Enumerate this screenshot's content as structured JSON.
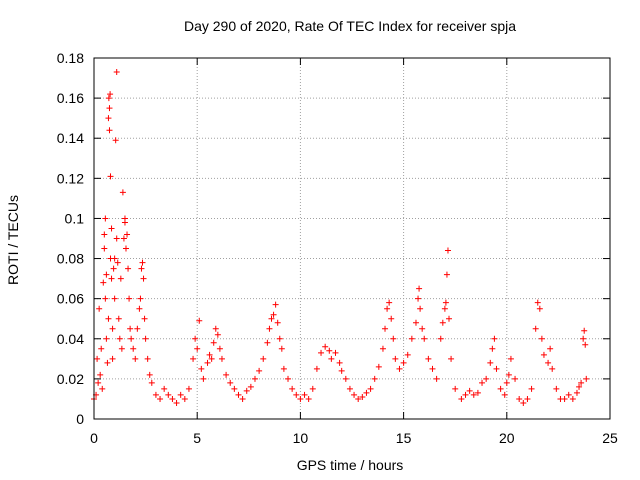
{
  "chart_data": {
    "type": "scatter",
    "title": "Day 290 of 2020, Rate Of TEC Index for receiver spja",
    "xlabel": "GPS time / hours",
    "ylabel": "ROTI / TECUs",
    "xlim": [
      0,
      25
    ],
    "ylim": [
      0,
      0.18
    ],
    "xticks": [
      {
        "value": 0,
        "label": "0"
      },
      {
        "value": 5,
        "label": "5"
      },
      {
        "value": 10,
        "label": "10"
      },
      {
        "value": 15,
        "label": "15"
      },
      {
        "value": 20,
        "label": "20"
      },
      {
        "value": 25,
        "label": "25"
      }
    ],
    "yticks": [
      {
        "value": 0,
        "label": "0"
      },
      {
        "value": 0.02,
        "label": "0.02"
      },
      {
        "value": 0.04,
        "label": "0.04"
      },
      {
        "value": 0.06,
        "label": "0.06"
      },
      {
        "value": 0.08,
        "label": "0.08"
      },
      {
        "value": 0.1,
        "label": "0.1"
      },
      {
        "value": 0.12,
        "label": "0.12"
      },
      {
        "value": 0.14,
        "label": "0.14"
      },
      {
        "value": 0.16,
        "label": "0.16"
      },
      {
        "value": 0.18,
        "label": "0.18"
      }
    ],
    "grid": true,
    "marker": "+",
    "color": "#ff0000",
    "series": [
      {
        "name": "ROTI",
        "points": [
          [
            0.0,
            0.01
          ],
          [
            0.1,
            0.012
          ],
          [
            0.15,
            0.03
          ],
          [
            0.2,
            0.018
          ],
          [
            0.25,
            0.055
          ],
          [
            0.3,
            0.022
          ],
          [
            0.35,
            0.035
          ],
          [
            0.4,
            0.015
          ],
          [
            0.45,
            0.068
          ],
          [
            0.5,
            0.092
          ],
          [
            0.5,
            0.085
          ],
          [
            0.55,
            0.1
          ],
          [
            0.55,
            0.06
          ],
          [
            0.6,
            0.072
          ],
          [
            0.6,
            0.04
          ],
          [
            0.65,
            0.028
          ],
          [
            0.7,
            0.05
          ],
          [
            0.7,
            0.15
          ],
          [
            0.72,
            0.16
          ],
          [
            0.75,
            0.155
          ],
          [
            0.75,
            0.144
          ],
          [
            0.78,
            0.162
          ],
          [
            0.8,
            0.121
          ],
          [
            0.8,
            0.08
          ],
          [
            0.85,
            0.095
          ],
          [
            0.85,
            0.07
          ],
          [
            0.9,
            0.045
          ],
          [
            0.9,
            0.03
          ],
          [
            0.95,
            0.075
          ],
          [
            1.0,
            0.08
          ],
          [
            1.0,
            0.06
          ],
          [
            1.05,
            0.139
          ],
          [
            1.1,
            0.173
          ],
          [
            1.1,
            0.09
          ],
          [
            1.15,
            0.078
          ],
          [
            1.2,
            0.05
          ],
          [
            1.25,
            0.04
          ],
          [
            1.3,
            0.07
          ],
          [
            1.35,
            0.035
          ],
          [
            1.4,
            0.113
          ],
          [
            1.45,
            0.09
          ],
          [
            1.5,
            0.1
          ],
          [
            1.5,
            0.098
          ],
          [
            1.55,
            0.085
          ],
          [
            1.6,
            0.092
          ],
          [
            1.65,
            0.075
          ],
          [
            1.7,
            0.06
          ],
          [
            1.75,
            0.045
          ],
          [
            1.8,
            0.04
          ],
          [
            1.9,
            0.035
          ],
          [
            2.0,
            0.03
          ],
          [
            2.1,
            0.045
          ],
          [
            2.2,
            0.055
          ],
          [
            2.25,
            0.06
          ],
          [
            2.3,
            0.075
          ],
          [
            2.35,
            0.078
          ],
          [
            2.4,
            0.07
          ],
          [
            2.45,
            0.05
          ],
          [
            2.5,
            0.04
          ],
          [
            2.6,
            0.03
          ],
          [
            2.7,
            0.022
          ],
          [
            2.8,
            0.018
          ],
          [
            3.0,
            0.012
          ],
          [
            3.2,
            0.01
          ],
          [
            3.4,
            0.015
          ],
          [
            3.6,
            0.012
          ],
          [
            3.8,
            0.01
          ],
          [
            4.0,
            0.008
          ],
          [
            4.2,
            0.012
          ],
          [
            4.4,
            0.01
          ],
          [
            4.6,
            0.015
          ],
          [
            4.8,
            0.03
          ],
          [
            4.9,
            0.04
          ],
          [
            5.0,
            0.035
          ],
          [
            5.1,
            0.049
          ],
          [
            5.2,
            0.025
          ],
          [
            5.3,
            0.02
          ],
          [
            5.5,
            0.028
          ],
          [
            5.6,
            0.032
          ],
          [
            5.7,
            0.03
          ],
          [
            5.8,
            0.038
          ],
          [
            5.9,
            0.045
          ],
          [
            6.0,
            0.042
          ],
          [
            6.1,
            0.035
          ],
          [
            6.2,
            0.03
          ],
          [
            6.4,
            0.022
          ],
          [
            6.6,
            0.018
          ],
          [
            6.8,
            0.015
          ],
          [
            7.0,
            0.012
          ],
          [
            7.2,
            0.01
          ],
          [
            7.4,
            0.014
          ],
          [
            7.6,
            0.016
          ],
          [
            7.8,
            0.02
          ],
          [
            8.0,
            0.024
          ],
          [
            8.2,
            0.03
          ],
          [
            8.4,
            0.038
          ],
          [
            8.5,
            0.045
          ],
          [
            8.6,
            0.05
          ],
          [
            8.7,
            0.052
          ],
          [
            8.8,
            0.057
          ],
          [
            8.9,
            0.048
          ],
          [
            9.0,
            0.04
          ],
          [
            9.1,
            0.035
          ],
          [
            9.2,
            0.025
          ],
          [
            9.4,
            0.02
          ],
          [
            9.6,
            0.015
          ],
          [
            9.8,
            0.012
          ],
          [
            10.0,
            0.01
          ],
          [
            10.2,
            0.012
          ],
          [
            10.4,
            0.01
          ],
          [
            10.6,
            0.015
          ],
          [
            10.8,
            0.025
          ],
          [
            11.0,
            0.033
          ],
          [
            11.2,
            0.036
          ],
          [
            11.4,
            0.034
          ],
          [
            11.5,
            0.03
          ],
          [
            11.7,
            0.033
          ],
          [
            11.9,
            0.028
          ],
          [
            12.0,
            0.024
          ],
          [
            12.2,
            0.02
          ],
          [
            12.4,
            0.015
          ],
          [
            12.6,
            0.012
          ],
          [
            12.8,
            0.01
          ],
          [
            13.0,
            0.011
          ],
          [
            13.2,
            0.013
          ],
          [
            13.4,
            0.015
          ],
          [
            13.6,
            0.02
          ],
          [
            13.8,
            0.026
          ],
          [
            14.0,
            0.035
          ],
          [
            14.1,
            0.045
          ],
          [
            14.2,
            0.055
          ],
          [
            14.3,
            0.058
          ],
          [
            14.4,
            0.05
          ],
          [
            14.5,
            0.04
          ],
          [
            14.6,
            0.03
          ],
          [
            14.8,
            0.025
          ],
          [
            15.0,
            0.028
          ],
          [
            15.2,
            0.032
          ],
          [
            15.4,
            0.04
          ],
          [
            15.6,
            0.048
          ],
          [
            15.7,
            0.06
          ],
          [
            15.75,
            0.065
          ],
          [
            15.8,
            0.055
          ],
          [
            15.9,
            0.045
          ],
          [
            16.0,
            0.04
          ],
          [
            16.2,
            0.03
          ],
          [
            16.4,
            0.025
          ],
          [
            16.6,
            0.02
          ],
          [
            16.8,
            0.04
          ],
          [
            16.9,
            0.048
          ],
          [
            17.0,
            0.055
          ],
          [
            17.05,
            0.058
          ],
          [
            17.1,
            0.072
          ],
          [
            17.15,
            0.084
          ],
          [
            17.2,
            0.05
          ],
          [
            17.3,
            0.03
          ],
          [
            17.5,
            0.015
          ],
          [
            17.8,
            0.01
          ],
          [
            18.0,
            0.012
          ],
          [
            18.2,
            0.014
          ],
          [
            18.4,
            0.012
          ],
          [
            18.6,
            0.013
          ],
          [
            18.8,
            0.018
          ],
          [
            19.0,
            0.02
          ],
          [
            19.2,
            0.028
          ],
          [
            19.3,
            0.035
          ],
          [
            19.4,
            0.04
          ],
          [
            19.5,
            0.025
          ],
          [
            19.7,
            0.015
          ],
          [
            19.9,
            0.012
          ],
          [
            20.0,
            0.018
          ],
          [
            20.1,
            0.022
          ],
          [
            20.2,
            0.03
          ],
          [
            20.4,
            0.02
          ],
          [
            20.6,
            0.01
          ],
          [
            20.8,
            0.008
          ],
          [
            21.0,
            0.01
          ],
          [
            21.2,
            0.015
          ],
          [
            21.4,
            0.045
          ],
          [
            21.5,
            0.058
          ],
          [
            21.6,
            0.055
          ],
          [
            21.7,
            0.04
          ],
          [
            21.8,
            0.032
          ],
          [
            22.0,
            0.028
          ],
          [
            22.1,
            0.035
          ],
          [
            22.2,
            0.025
          ],
          [
            22.4,
            0.015
          ],
          [
            22.6,
            0.01
          ],
          [
            22.8,
            0.01
          ],
          [
            23.0,
            0.012
          ],
          [
            23.2,
            0.01
          ],
          [
            23.4,
            0.013
          ],
          [
            23.5,
            0.016
          ],
          [
            23.6,
            0.018
          ],
          [
            23.7,
            0.04
          ],
          [
            23.75,
            0.044
          ],
          [
            23.8,
            0.037
          ],
          [
            23.85,
            0.02
          ]
        ]
      }
    ]
  }
}
